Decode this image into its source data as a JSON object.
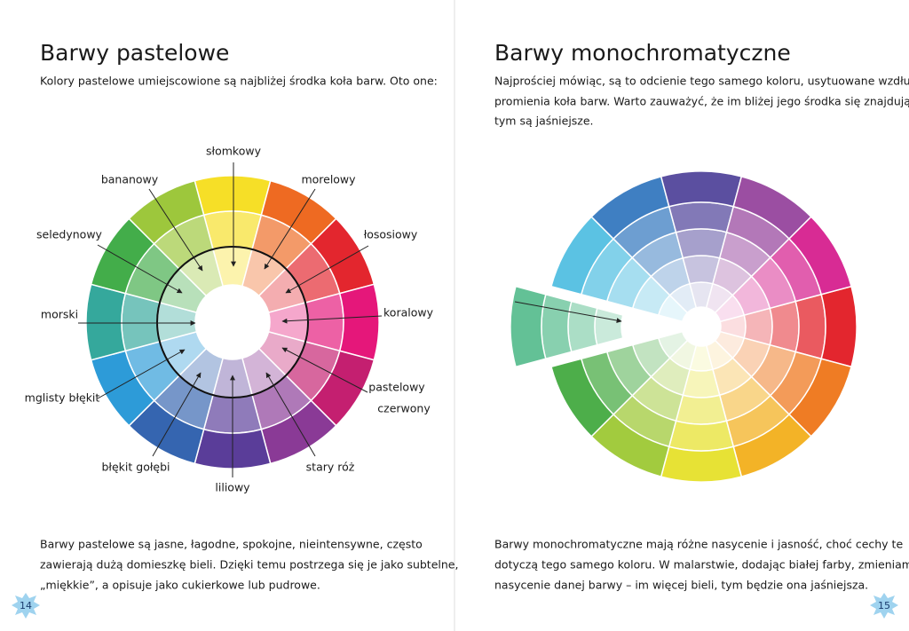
{
  "left_page": {
    "title": "Barwy pastelowe",
    "intro": "Kolory pastelowe umiejscowione są najbliżej środka koła barw. Oto one:",
    "wheel_labels": [
      [
        "słomkowy"
      ],
      [
        "morelowy"
      ],
      [
        "łososiowy"
      ],
      [
        "koralowy"
      ],
      [
        "pastelowy",
        "czerwony"
      ],
      [
        "stary róż"
      ],
      [
        "liliowy"
      ],
      [
        "błękit gołębi"
      ],
      [
        "mglisty błękit"
      ],
      [
        "morski"
      ],
      [
        "seledynowy"
      ],
      [
        "bananowy"
      ]
    ],
    "body": [
      "Barwy pastelowe są jasne, łagodne, spokojne, nieintensywne, często",
      "zawierają dużą domieszkę bieli. Dzięki temu postrzega się je jako subtelne,",
      "„miękkie”, a opisuje jako cukierkowe lub pudrowe."
    ],
    "page_number": "14"
  },
  "right_page": {
    "title": "Barwy monochromatyczne",
    "intro": [
      "Najprościej mówiąc, są to odcienie tego samego koloru, usytuowane wzdłuż",
      "promienia koła barw. Warto zauważyć, że im bliżej jego środka się znajdują,",
      "tym są jaśniejsze."
    ],
    "body": [
      "Barwy monochromatyczne mają różne nasycenie i jasność, choć cechy te",
      "dotyczą tego samego koloru. W malarstwie, dodając białej farby, zmieniamy",
      "nasycenie danej barwy – im więcej bieli, tym będzie ona jaśniejsza."
    ],
    "page_number": "15"
  }
}
